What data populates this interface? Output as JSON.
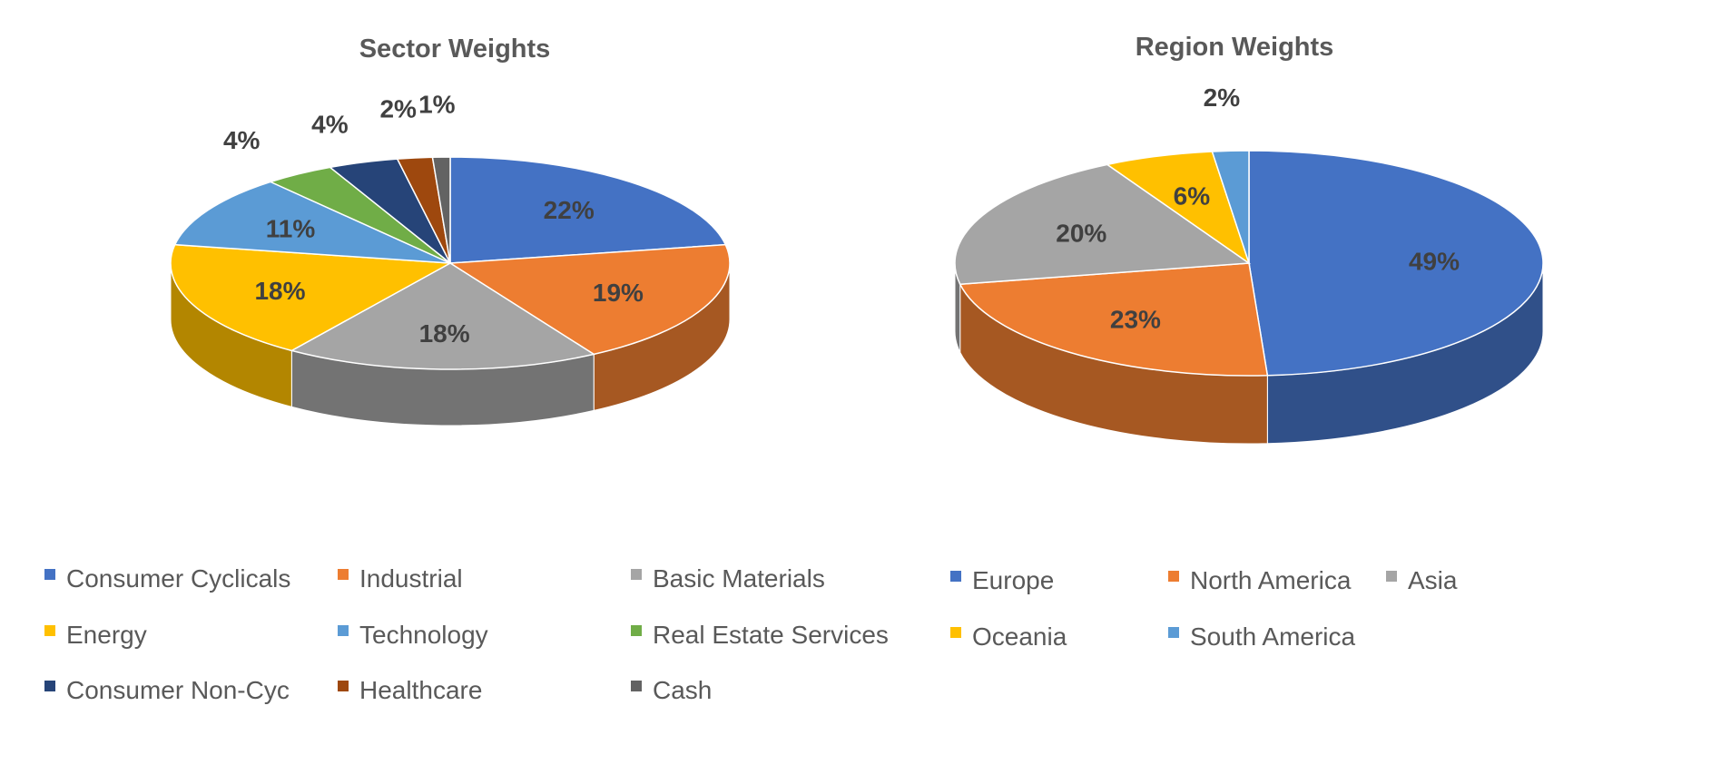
{
  "chart_data": [
    {
      "type": "pie",
      "title": "Sector Weights",
      "legend_position": "bottom",
      "categories": [
        "Consumer Cyclicals",
        "Industrial",
        "Basic Materials",
        "Energy",
        "Technology",
        "Real Estate Services",
        "Consumer Non-Cyc",
        "Healthcare",
        "Cash"
      ],
      "values": [
        22,
        19,
        18,
        18,
        11,
        4,
        4,
        2,
        1
      ],
      "labels": [
        "22%",
        "19%",
        "18%",
        "18%",
        "11%",
        "4%",
        "4%",
        "2%",
        "1%"
      ],
      "colors": [
        "#4472C4",
        "#ED7D31",
        "#A5A5A5",
        "#FFC000",
        "#5B9BD5",
        "#70AD47",
        "#264478",
        "#9E480E",
        "#636363"
      ]
    },
    {
      "type": "pie",
      "title": "Region Weights",
      "legend_position": "bottom",
      "categories": [
        "Europe",
        "North America",
        "Asia",
        "Oceania",
        "South America"
      ],
      "values": [
        49,
        23,
        20,
        6,
        2
      ],
      "labels": [
        "49%",
        "23%",
        "20%",
        "6%",
        "2%"
      ],
      "colors": [
        "#4472C4",
        "#ED7D31",
        "#A5A5A5",
        "#FFC000",
        "#5B9BD5"
      ]
    }
  ]
}
